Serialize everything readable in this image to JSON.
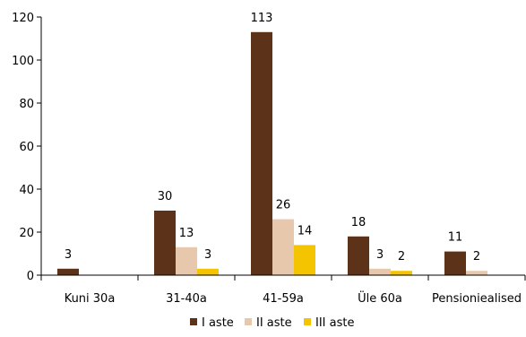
{
  "chart_data": {
    "type": "bar",
    "title": "",
    "xlabel": "",
    "ylabel": "",
    "ylim": [
      0,
      120
    ],
    "yticks": [
      0,
      20,
      40,
      60,
      80,
      100,
      120
    ],
    "grid": false,
    "legend_position": "bottom",
    "categories": [
      "Kuni 30a",
      "31-40a",
      "41-59a",
      "Üle 60a",
      "Pensioniealised"
    ],
    "series": [
      {
        "name": "I aste",
        "color": "#5c3218",
        "values": [
          3,
          30,
          113,
          18,
          11
        ],
        "labels": [
          "3",
          "30",
          "113",
          "18",
          "11"
        ]
      },
      {
        "name": "II aste",
        "color": "#e8c8ac",
        "values": [
          0,
          13,
          26,
          3,
          2
        ],
        "labels": [
          "",
          "13",
          "26",
          "3",
          "2"
        ]
      },
      {
        "name": "III aste",
        "color": "#f5c400",
        "values": [
          0,
          3,
          14,
          2,
          0
        ],
        "labels": [
          "",
          "3",
          "14",
          "2",
          ""
        ]
      }
    ]
  }
}
